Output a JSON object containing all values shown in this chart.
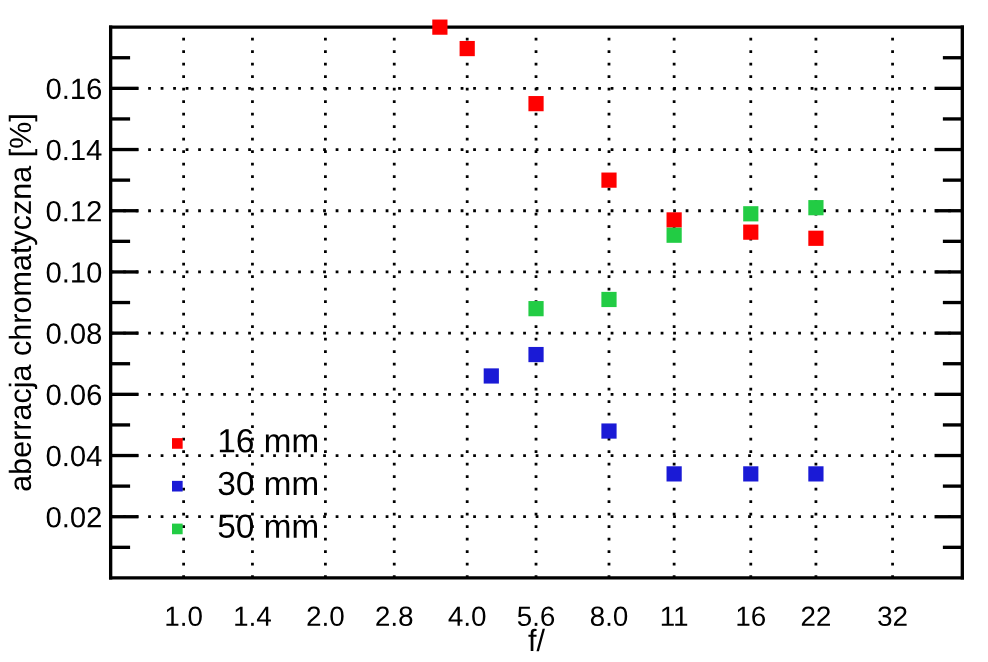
{
  "chart_data": {
    "type": "scatter",
    "xlabel": "f/",
    "ylabel": "aberracja chromatyczna [%]",
    "log": "x",
    "marker": "square",
    "grid": true,
    "legend": "bottom left",
    "xlim": [
      0.7,
      45
    ],
    "ylim": [
      0,
      0.18
    ],
    "xticks": [
      {
        "value": 1,
        "label": "1.0"
      },
      1.4,
      {
        "value": 2,
        "label": "2.0"
      },
      2.8,
      {
        "value": 4,
        "label": "4.0"
      },
      5.6,
      {
        "value": 8,
        "label": "8.0"
      },
      11,
      16,
      22,
      32
    ],
    "yticks": [
      {
        "value": 0.01,
        "label": null
      },
      0.02,
      {
        "value": 0.03,
        "label": null
      },
      0.04,
      {
        "value": 0.05,
        "label": null
      },
      0.06,
      {
        "value": 0.07,
        "label": null
      },
      0.08,
      {
        "value": 0.09,
        "label": null
      },
      {
        "value": 0.1,
        "label": "0.10"
      },
      {
        "value": 0.11,
        "label": null
      },
      0.12,
      {
        "value": 0.13,
        "label": null
      },
      0.14,
      {
        "value": 0.15,
        "label": null
      },
      0.16,
      {
        "value": 0.17,
        "label": null
      }
    ],
    "series": [
      {
        "name": "16 mm",
        "color": "#ff0000",
        "x": [
          3.5,
          4,
          5.6,
          8,
          11,
          16,
          22
        ],
        "values": [
          0.18,
          0.173,
          0.155,
          0.13,
          0.117,
          0.113,
          0.111
        ]
      },
      {
        "name": "30 mm",
        "color": "#1a1ad6",
        "x": [
          4.5,
          5.6,
          8,
          11,
          16,
          22
        ],
        "values": [
          0.066,
          0.073,
          0.048,
          0.034,
          0.034,
          0.034
        ]
      },
      {
        "name": "50 mm",
        "color": "#22cc44",
        "x": [
          5.6,
          8,
          11,
          16,
          22
        ],
        "values": [
          0.088,
          0.091,
          0.112,
          0.119,
          0.121
        ]
      }
    ]
  }
}
